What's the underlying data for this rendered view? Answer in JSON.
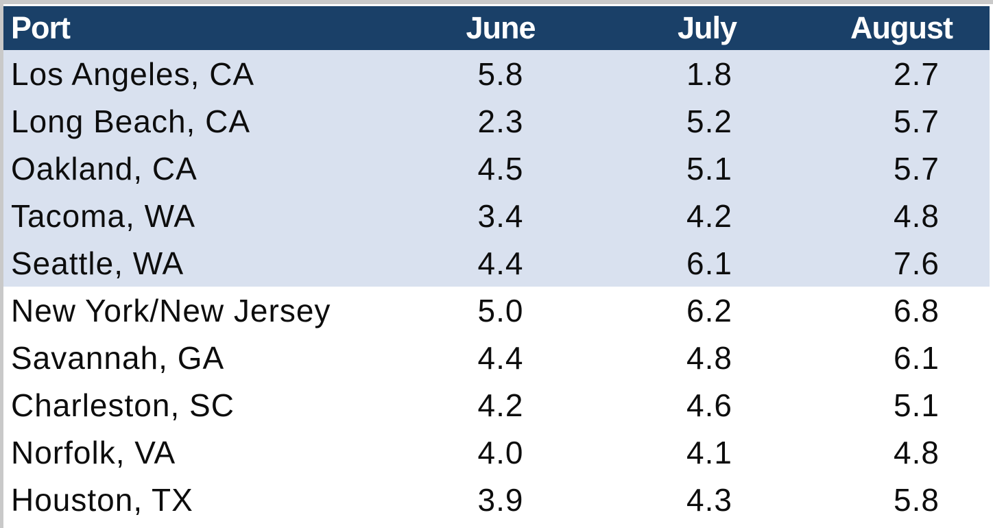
{
  "chart_data": {
    "type": "table",
    "columns": [
      "Port",
      "June",
      "July",
      "August"
    ],
    "rows": [
      {
        "port": "Los Angeles, CA",
        "group": "west",
        "june": "5.8",
        "july": "1.8",
        "august": "2.7"
      },
      {
        "port": "Long Beach, CA",
        "group": "west",
        "june": "2.3",
        "july": "5.2",
        "august": "5.7"
      },
      {
        "port": "Oakland, CA",
        "group": "west",
        "june": "4.5",
        "july": "5.1",
        "august": "5.7"
      },
      {
        "port": "Tacoma, WA",
        "group": "west",
        "june": "3.4",
        "july": "4.2",
        "august": "4.8"
      },
      {
        "port": "Seattle, WA",
        "group": "west",
        "june": "4.4",
        "july": "6.1",
        "august": "7.6"
      },
      {
        "port": "New York/New Jersey",
        "group": "east",
        "june": "5.0",
        "july": "6.2",
        "august": "6.8"
      },
      {
        "port": "Savannah, GA",
        "group": "east",
        "june": "4.4",
        "july": "4.8",
        "august": "6.1"
      },
      {
        "port": "Charleston, SC",
        "group": "east",
        "june": "4.2",
        "july": "4.6",
        "august": "5.1"
      },
      {
        "port": "Norfolk, VA",
        "group": "east",
        "june": "4.0",
        "july": "4.1",
        "august": "4.8"
      },
      {
        "port": "Houston, TX",
        "group": "east",
        "june": "3.9",
        "july": "4.3",
        "august": "5.8"
      }
    ]
  },
  "colors": {
    "header_bg": "#1a4068",
    "header_text": "#ffffff",
    "west_row_bg": "#d9e1ef",
    "east_row_bg": "#ffffff"
  }
}
